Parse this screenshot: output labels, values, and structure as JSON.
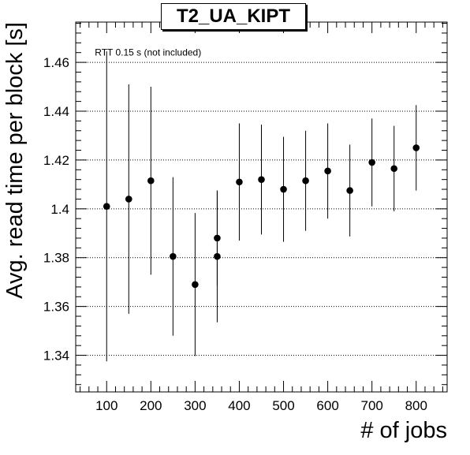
{
  "chart_data": {
    "type": "scatter",
    "title": "T2_UA_KIPT",
    "xlabel": "# of jobs",
    "ylabel": "Avg. read time per block [s]",
    "annotation": "RTT 0.15 s (not included)",
    "xlim": [
      30,
      870
    ],
    "ylim": [
      1.325,
      1.4765
    ],
    "x_ticks": [
      100,
      200,
      300,
      400,
      500,
      600,
      700,
      800
    ],
    "y_ticks": [
      1.34,
      1.36,
      1.38,
      1.4,
      1.42,
      1.44,
      1.46
    ],
    "y_tick_labels": [
      "1.34",
      "1.36",
      "1.38",
      "1.4",
      "1.42",
      "1.44",
      "1.46"
    ],
    "grid": {
      "x": false,
      "y": true,
      "style": "dotted"
    },
    "series": [
      {
        "marker": "circle",
        "color": "#000000",
        "points": [
          {
            "x": 100,
            "y": 1.401,
            "err": 0.0635
          },
          {
            "x": 150,
            "y": 1.404,
            "err": 0.047
          },
          {
            "x": 200,
            "y": 1.4115,
            "err": 0.0385
          },
          {
            "x": 250,
            "y": 1.3805,
            "err": 0.0325
          },
          {
            "x": 300,
            "y": 1.369,
            "err": 0.0293
          },
          {
            "x": 350,
            "y": 1.3805,
            "err": 0.027
          },
          {
            "x": 350,
            "y": 1.388,
            "err": 0.0195
          },
          {
            "x": 400,
            "y": 1.411,
            "err": 0.024
          },
          {
            "x": 450,
            "y": 1.412,
            "err": 0.0225
          },
          {
            "x": 500,
            "y": 1.408,
            "err": 0.0215
          },
          {
            "x": 550,
            "y": 1.4115,
            "err": 0.0205
          },
          {
            "x": 600,
            "y": 1.4155,
            "err": 0.0195
          },
          {
            "x": 650,
            "y": 1.4075,
            "err": 0.0188
          },
          {
            "x": 700,
            "y": 1.419,
            "err": 0.018
          },
          {
            "x": 750,
            "y": 1.4165,
            "err": 0.0175
          },
          {
            "x": 800,
            "y": 1.425,
            "err": 0.0175
          }
        ]
      }
    ]
  }
}
